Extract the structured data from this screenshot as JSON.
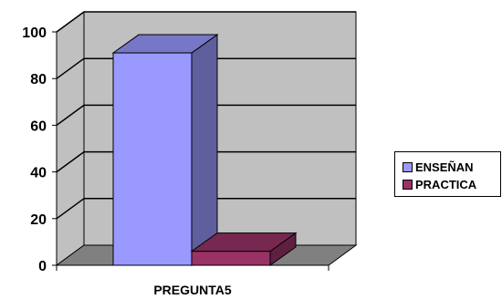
{
  "chart_data": {
    "type": "bar",
    "style": "3d-clustered",
    "categories": [
      "PREGUNTA5"
    ],
    "series": [
      {
        "name": "ENSEÑAN",
        "values": [
          91
        ],
        "color": "#9999FF"
      },
      {
        "name": "PRACTICA",
        "values": [
          6
        ],
        "color": "#993366"
      }
    ],
    "ylim": [
      0,
      100
    ],
    "yticks": [
      "0",
      "20",
      "40",
      "60",
      "80",
      "100"
    ],
    "grid": true,
    "legend": "right",
    "wall_color": "#C0C0C0",
    "floor_color": "#808080"
  }
}
